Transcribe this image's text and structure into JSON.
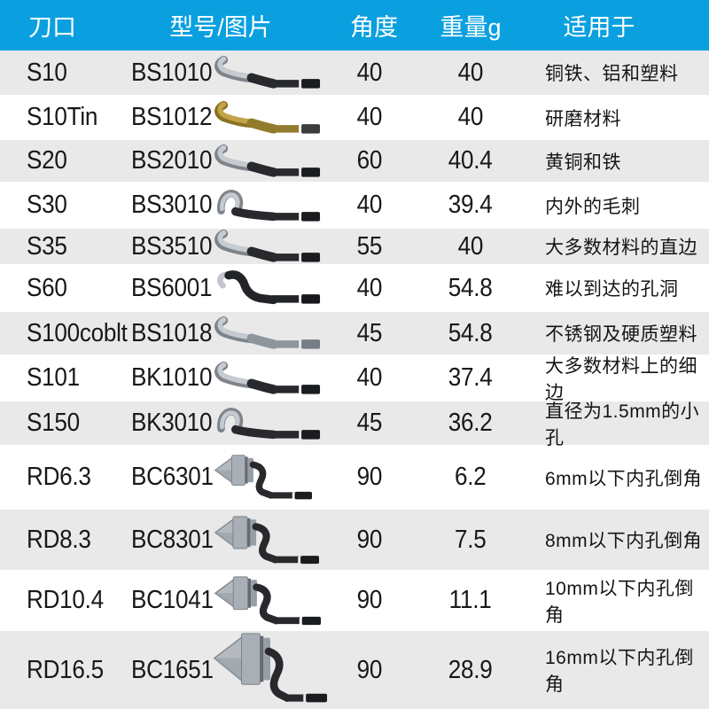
{
  "colors": {
    "header_bg": "#0aa0e0",
    "header_text": "#ffffff",
    "row_bg": "#ffffff",
    "row_alt_bg": "#e9e9e9",
    "text": "#17181a"
  },
  "header": {
    "columns": [
      {
        "label": "刀口"
      },
      {
        "label": "型号/图片"
      },
      {
        "label": "角度"
      },
      {
        "label": "重量g"
      },
      {
        "label": "适用于"
      }
    ]
  },
  "table": {
    "rows": [
      {
        "blade": "S10",
        "model": "BS1010",
        "angle": "40",
        "weight": "40",
        "application": "铜铁、铝和塑料",
        "image": "s-blade",
        "blade_color": "silver"
      },
      {
        "blade": "S10Tin",
        "model": "BS1012",
        "angle": "40",
        "weight": "40",
        "application": "研磨材料",
        "image": "s-blade",
        "blade_color": "gold"
      },
      {
        "blade": "S20",
        "model": "BS2010",
        "angle": "60",
        "weight": "40.4",
        "application": "黄铜和铁",
        "image": "s-blade",
        "blade_color": "silver"
      },
      {
        "blade": "S30",
        "model": "BS3010",
        "angle": "40",
        "weight": "39.4",
        "application": "内外的毛刺",
        "image": "hook-blade",
        "blade_color": "silver"
      },
      {
        "blade": "S35",
        "model": "BS3510",
        "angle": "55",
        "weight": "40",
        "application": "大多数材料的直边",
        "image": "s-blade",
        "blade_color": "silver"
      },
      {
        "blade": "S60",
        "model": "BS6001",
        "angle": "40",
        "weight": "54.8",
        "application": "难以到达的孔洞",
        "image": "zigzag-blade",
        "blade_color": "dark"
      },
      {
        "blade": "S100coblt",
        "model": "BS1018",
        "angle": "45",
        "weight": "54.8",
        "application": "不锈钢及硬质塑料",
        "image": "s-blade",
        "blade_color": "steel"
      },
      {
        "blade": "S101",
        "model": "BK1010",
        "angle": "40",
        "weight": "37.4",
        "application": "大多数材料上的细边",
        "image": "s-blade",
        "blade_color": "silver"
      },
      {
        "blade": "S150",
        "model": "BK3010",
        "angle": "45",
        "weight": "36.2",
        "application": "直径为1.5mm的小孔",
        "image": "hook-blade",
        "blade_color": "silver"
      },
      {
        "blade": "RD6.3",
        "model": "BC6301",
        "angle": "90",
        "weight": "6.2",
        "application": "6mm以下内孔倒角",
        "image": "countersink",
        "blade_color": "silver"
      },
      {
        "blade": "RD8.3",
        "model": "BC8301",
        "angle": "90",
        "weight": "7.5",
        "application": "8mm以下内孔倒角",
        "image": "countersink",
        "blade_color": "silver"
      },
      {
        "blade": "RD10.4",
        "model": "BC1041",
        "angle": "90",
        "weight": "11.1",
        "application": "10mm以下内孔倒角",
        "image": "countersink",
        "blade_color": "silver"
      },
      {
        "blade": "RD16.5",
        "model": "BC1651",
        "angle": "90",
        "weight": "28.9",
        "application": "16mm以下内孔倒角",
        "image": "countersink-large",
        "blade_color": "silver"
      }
    ]
  },
  "chart_data": {
    "type": "table",
    "columns": [
      "刀口",
      "型号/图片",
      "角度",
      "重量g",
      "适用于"
    ],
    "rows": [
      [
        "S10",
        "BS1010",
        40,
        40,
        "铜铁、铝和塑料"
      ],
      [
        "S10Tin",
        "BS1012",
        40,
        40,
        "研磨材料"
      ],
      [
        "S20",
        "BS2010",
        60,
        40.4,
        "黄铜和铁"
      ],
      [
        "S30",
        "BS3010",
        40,
        39.4,
        "内外的毛刺"
      ],
      [
        "S35",
        "BS3510",
        55,
        40,
        "大多数材料的直边"
      ],
      [
        "S60",
        "BS6001",
        40,
        54.8,
        "难以到达的孔洞"
      ],
      [
        "S100coblt",
        "BS1018",
        45,
        54.8,
        "不锈钢及硬质塑料"
      ],
      [
        "S101",
        "BK1010",
        40,
        37.4,
        "大多数材料上的细边"
      ],
      [
        "S150",
        "BK3010",
        45,
        36.2,
        "直径为1.5mm的小孔"
      ],
      [
        "RD6.3",
        "BC6301",
        90,
        6.2,
        "6mm以下内孔倒角"
      ],
      [
        "RD8.3",
        "BC8301",
        90,
        7.5,
        "8mm以下内孔倒角"
      ],
      [
        "RD10.4",
        "BC1041",
        90,
        11.1,
        "10mm以下内孔倒角"
      ],
      [
        "RD16.5",
        "BC1651",
        90,
        28.9,
        "16mm以下内孔倒角"
      ]
    ]
  }
}
